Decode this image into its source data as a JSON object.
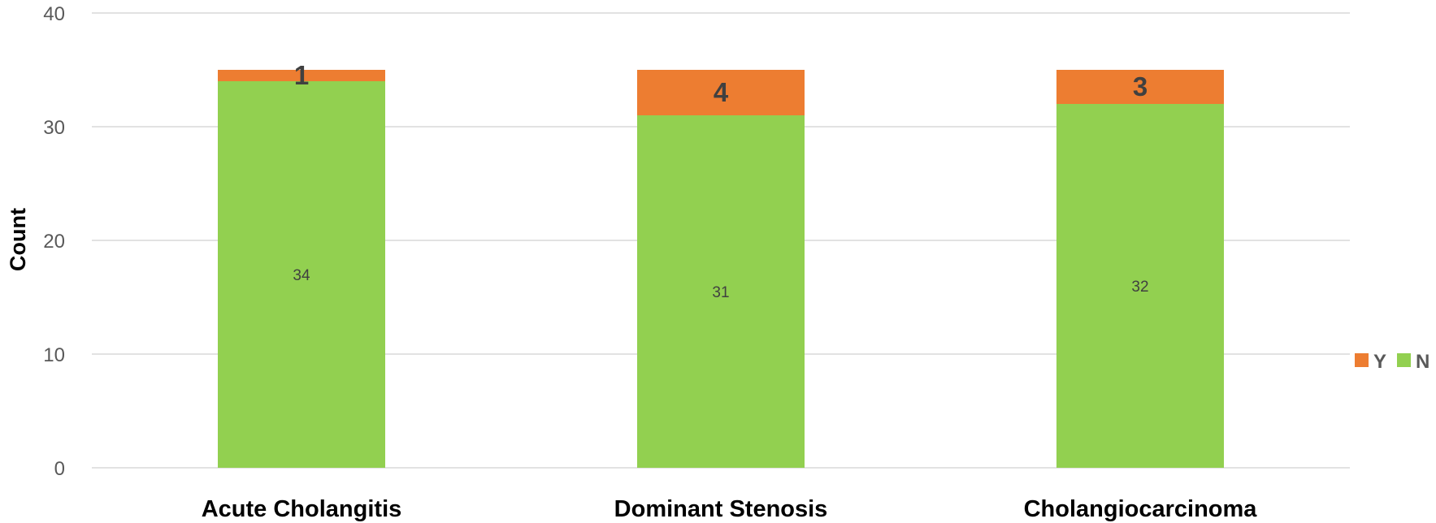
{
  "chart_data": {
    "type": "bar",
    "stacked": true,
    "categories": [
      "Acute Cholangitis",
      "Dominant Stenosis",
      "Cholangiocarcinoma"
    ],
    "series": [
      {
        "name": "N",
        "values": [
          34,
          31,
          32
        ],
        "color": "#92D050"
      },
      {
        "name": "Y",
        "values": [
          1,
          4,
          3
        ],
        "color": "#ED7D31"
      }
    ],
    "ylabel": "Count",
    "xlabel": "",
    "ylim": [
      0,
      40
    ],
    "yticks": [
      0,
      10,
      20,
      30,
      40
    ],
    "grid": true,
    "legend": {
      "placement": "right",
      "order": [
        "Y",
        "N"
      ]
    },
    "data_labels": true
  }
}
